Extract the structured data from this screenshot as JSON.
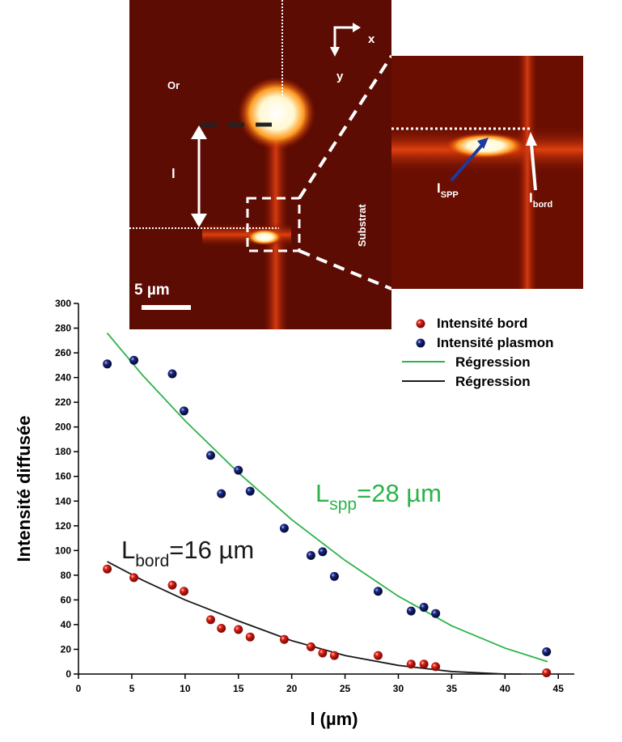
{
  "chart_data": {
    "type": "scatter",
    "xlabel": "l (µm)",
    "ylabel": "Intensité diffusée",
    "xlim": [
      0,
      46.5
    ],
    "ylim": [
      0,
      300
    ],
    "xticks": [
      0,
      5,
      10,
      15,
      20,
      25,
      30,
      35,
      40,
      45
    ],
    "yticks": [
      0,
      20,
      40,
      60,
      80,
      100,
      120,
      140,
      160,
      180,
      200,
      220,
      240,
      260,
      280,
      300
    ],
    "series": [
      {
        "name": "Intensité bord",
        "color": "#e3241b",
        "kind": "points",
        "x": [
          2.7,
          5.2,
          8.8,
          9.9,
          12.4,
          13.4,
          15,
          16.1,
          19.3,
          21.8,
          22.9,
          24,
          28.1,
          31.2,
          32.4,
          33.5,
          43.9
        ],
        "values": [
          85,
          78,
          72,
          67,
          44,
          37,
          36,
          30,
          28,
          22,
          17,
          15,
          15,
          8,
          8,
          6,
          1
        ]
      },
      {
        "name": "Intensité plasmon",
        "color": "#1d2c8c",
        "kind": "points",
        "x": [
          2.7,
          5.2,
          8.8,
          9.9,
          12.4,
          13.4,
          15,
          16.1,
          19.3,
          21.8,
          22.9,
          24,
          28.1,
          31.2,
          32.4,
          33.5,
          43.9
        ],
        "values": [
          251,
          254,
          243,
          213,
          177,
          146,
          165,
          148,
          118,
          96,
          99,
          79,
          67,
          51,
          54,
          49,
          18
        ]
      },
      {
        "name": "Régression",
        "color": "#2db34a",
        "kind": "line",
        "x": [
          2.7,
          6,
          10,
          15,
          20,
          25,
          30,
          35,
          40,
          44
        ],
        "values": [
          276,
          242,
          205,
          163,
          125,
          92,
          63,
          39,
          21,
          10
        ]
      },
      {
        "name": "Régression",
        "color": "#1a1a1a",
        "kind": "line",
        "x": [
          2.7,
          6,
          10,
          15,
          20,
          25,
          30,
          35,
          40,
          41.5
        ],
        "values": [
          91,
          76,
          60,
          43,
          27,
          15,
          7,
          2,
          0,
          0
        ]
      }
    ],
    "annotations": [
      {
        "text": "L",
        "sub": "spp",
        "rest": "=28 µm",
        "color": "#2db34a"
      },
      {
        "text": "L",
        "sub": "bord",
        "rest": "=16 µm",
        "color": "#1a1a1a"
      }
    ],
    "image_labels": {
      "gold": "Or",
      "length": "l",
      "substrate": "Substrat",
      "scale": "5 µm",
      "x_dir": "x",
      "y_dir": "y",
      "i_spp": "I",
      "i_spp_sub": "SPP",
      "i_bord": "I",
      "i_bord_sub": "bord"
    }
  }
}
